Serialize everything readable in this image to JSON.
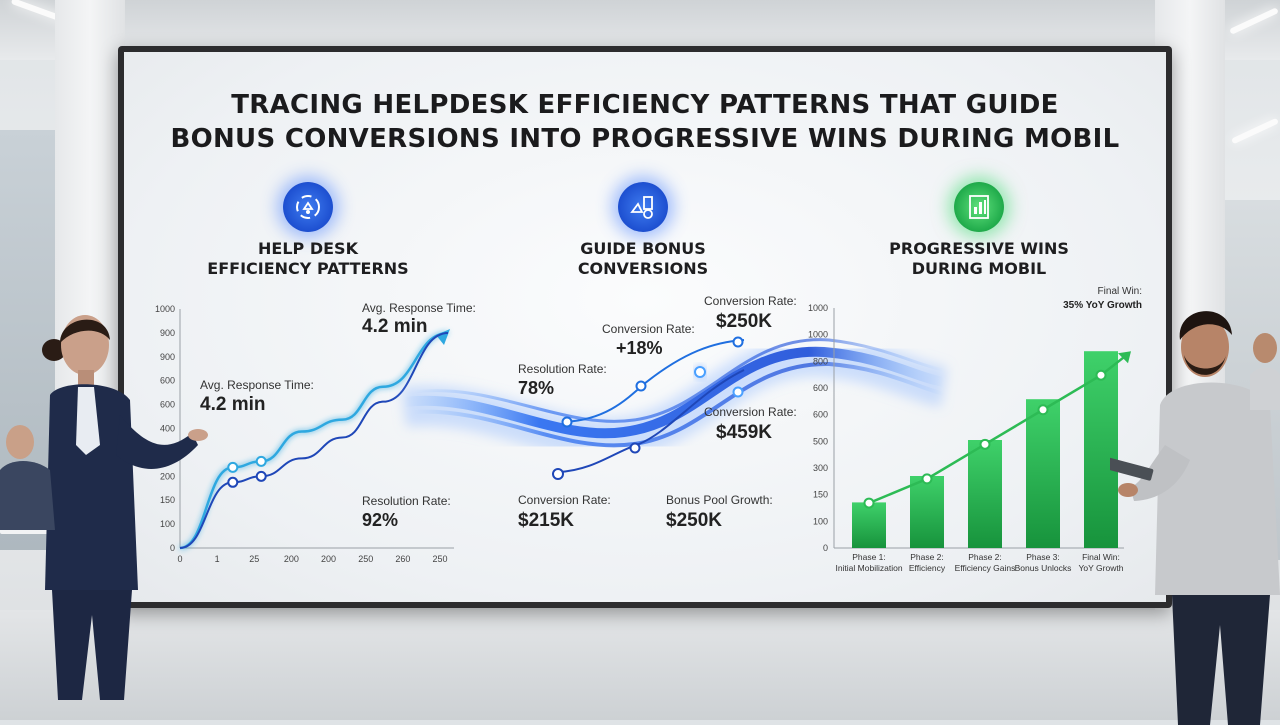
{
  "title_line1": "TRACING HELPDESK EFFICIENCY PATTERNS THAT GUIDE",
  "title_line2": "BONUS CONVERSIONS INTO PROGRESSIVE WINS DURING MOBIL",
  "sections": {
    "left": {
      "line1": "HELP DESK",
      "line2": "EFFICIENCY PATTERNS",
      "icon": "efficiency-cycle-icon"
    },
    "middle": {
      "line1": "GUIDE BONUS",
      "line2": "CONVERSIONS",
      "icon": "bonus-conversion-icon"
    },
    "right": {
      "line1": "PROGRESSIVE WINS",
      "line2": "DURING MOBIL",
      "icon": "progress-chart-icon"
    }
  },
  "colors": {
    "light_blue": "#2fa8e0",
    "dark_blue": "#1f47b8",
    "green": "#2dbb55",
    "green_dark": "#17933c"
  },
  "chart_data": [
    {
      "type": "line",
      "x_ticks": [
        "0",
        "1",
        "25",
        "200",
        "200",
        "250",
        "260",
        "250"
      ],
      "y_ticks": [
        "0",
        "100",
        "150",
        "200",
        "350",
        "400",
        "600",
        "600",
        "900",
        "900",
        "1000"
      ],
      "series": [
        {
          "color": "light_blue",
          "points": [
            [
              0,
              0
            ],
            [
              1.3,
              270
            ],
            [
              2,
              290
            ],
            [
              3,
              390
            ],
            [
              4,
              430
            ],
            [
              5,
              540
            ],
            [
              6.6,
              720
            ]
          ]
        },
        {
          "color": "dark_blue",
          "points": [
            [
              0,
              0
            ],
            [
              1.3,
              220
            ],
            [
              2,
              240
            ],
            [
              3,
              300
            ],
            [
              4,
              370
            ],
            [
              5,
              490
            ],
            [
              6.6,
              720
            ]
          ]
        }
      ],
      "annotations": [
        {
          "label": "Avg. Response Time:",
          "value": "4.2 min"
        },
        {
          "label": "Avg. Response Time:",
          "value": "4.2 min"
        },
        {
          "label": "Resolution Rate:",
          "value": "92%"
        }
      ]
    },
    {
      "type": "line",
      "annotations": [
        {
          "label": "Resolution Rate:",
          "value": "78%"
        },
        {
          "label": "Conversion Rate:",
          "value": "+18%"
        },
        {
          "label": "Conversion Rate:",
          "value": "$250K"
        },
        {
          "label": "Conversion Rate:",
          "value": "$459K"
        },
        {
          "label": "Conversion Rate:",
          "value": "$215K"
        },
        {
          "label": "Bonus Pool Growth:",
          "value": "$250K"
        }
      ]
    },
    {
      "type": "bar",
      "categories": [
        {
          "line1": "Phase 1:",
          "line2": "Initial Mobilization"
        },
        {
          "line1": "Phase 2:",
          "line2": "Efficiency"
        },
        {
          "line1": "Phase 2:",
          "line2": "Efficiency Gains"
        },
        {
          "line1": "Phase 3:",
          "line2": "Bonus Unlocks"
        },
        {
          "line1": "Final Win:",
          "line2": "YoY Growth"
        }
      ],
      "values": [
        190,
        300,
        450,
        620,
        820
      ],
      "trend": [
        260,
        400,
        600,
        800,
        1000
      ],
      "y_ticks": [
        "1000",
        "1000",
        "800",
        "600",
        "600",
        "500",
        "300",
        "150",
        "100",
        "0"
      ],
      "ylim": [
        0,
        1000
      ],
      "final_label": "Final Win:",
      "final_value": "35% YoY Growth"
    }
  ]
}
